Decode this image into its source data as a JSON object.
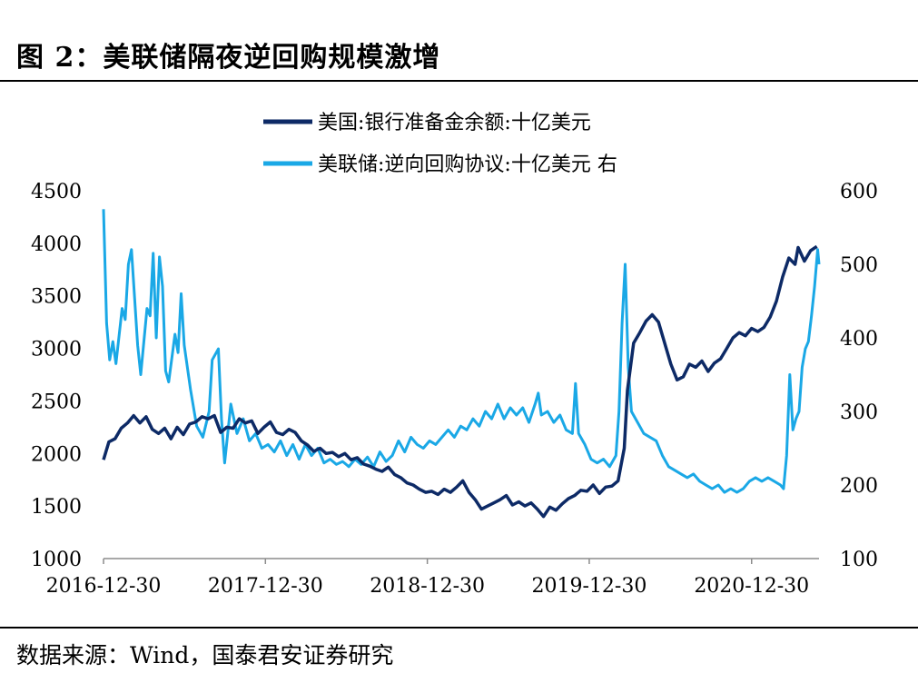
{
  "figure": {
    "title": "图 2：美联储隔夜逆回购规模激增",
    "source": "数据来源：Wind，国泰君安证券研究"
  },
  "chart_data": {
    "type": "line",
    "x_ticks": [
      "2016-12-30",
      "2017-12-30",
      "2018-12-30",
      "2019-12-30",
      "2020-12-30"
    ],
    "x_range": [
      "2016-12-30",
      "2021-05-31"
    ],
    "y_left": {
      "ticks": [
        1000,
        1500,
        2000,
        2500,
        3000,
        3500,
        4000,
        4500
      ],
      "range": [
        1000,
        4500
      ]
    },
    "y_right": {
      "ticks": [
        100,
        200,
        300,
        400,
        500,
        600
      ],
      "range": [
        100,
        600
      ]
    },
    "legend_position": "top-center",
    "grid": false,
    "series": [
      {
        "name": "美国:银行准备金余额:十亿美元",
        "axis": "left",
        "color": "#0d2a66",
        "points": [
          [
            "2016-12-30",
            1940
          ],
          [
            "2017-01-11",
            2110
          ],
          [
            "2017-01-25",
            2140
          ],
          [
            "2017-02-08",
            2240
          ],
          [
            "2017-02-22",
            2290
          ],
          [
            "2017-03-08",
            2360
          ],
          [
            "2017-03-22",
            2290
          ],
          [
            "2017-04-05",
            2350
          ],
          [
            "2017-04-19",
            2230
          ],
          [
            "2017-05-03",
            2190
          ],
          [
            "2017-05-17",
            2240
          ],
          [
            "2017-05-31",
            2140
          ],
          [
            "2017-06-14",
            2250
          ],
          [
            "2017-06-28",
            2180
          ],
          [
            "2017-07-12",
            2280
          ],
          [
            "2017-07-26",
            2300
          ],
          [
            "2017-08-09",
            2350
          ],
          [
            "2017-08-23",
            2330
          ],
          [
            "2017-09-06",
            2360
          ],
          [
            "2017-09-20",
            2200
          ],
          [
            "2017-10-04",
            2250
          ],
          [
            "2017-10-18",
            2240
          ],
          [
            "2017-11-01",
            2330
          ],
          [
            "2017-11-15",
            2290
          ],
          [
            "2017-11-29",
            2310
          ],
          [
            "2017-12-13",
            2190
          ],
          [
            "2017-12-27",
            2250
          ],
          [
            "2018-01-10",
            2300
          ],
          [
            "2018-01-24",
            2200
          ],
          [
            "2018-02-07",
            2180
          ],
          [
            "2018-02-21",
            2230
          ],
          [
            "2018-03-07",
            2200
          ],
          [
            "2018-03-21",
            2120
          ],
          [
            "2018-04-04",
            2080
          ],
          [
            "2018-04-18",
            2020
          ],
          [
            "2018-05-02",
            2050
          ],
          [
            "2018-05-16",
            2000
          ],
          [
            "2018-05-30",
            2010
          ],
          [
            "2018-06-13",
            1970
          ],
          [
            "2018-06-27",
            2000
          ],
          [
            "2018-07-11",
            1940
          ],
          [
            "2018-07-25",
            1960
          ],
          [
            "2018-08-08",
            1900
          ],
          [
            "2018-08-22",
            1880
          ],
          [
            "2018-09-05",
            1850
          ],
          [
            "2018-09-19",
            1830
          ],
          [
            "2018-10-03",
            1870
          ],
          [
            "2018-10-17",
            1800
          ],
          [
            "2018-10-31",
            1770
          ],
          [
            "2018-11-14",
            1720
          ],
          [
            "2018-11-28",
            1700
          ],
          [
            "2018-12-12",
            1660
          ],
          [
            "2018-12-26",
            1630
          ],
          [
            "2019-01-09",
            1640
          ],
          [
            "2019-01-23",
            1610
          ],
          [
            "2019-02-06",
            1660
          ],
          [
            "2019-02-20",
            1630
          ],
          [
            "2019-03-06",
            1680
          ],
          [
            "2019-03-20",
            1740
          ],
          [
            "2019-04-03",
            1630
          ],
          [
            "2019-04-17",
            1560
          ],
          [
            "2019-05-01",
            1470
          ],
          [
            "2019-05-15",
            1500
          ],
          [
            "2019-05-29",
            1530
          ],
          [
            "2019-06-12",
            1560
          ],
          [
            "2019-06-26",
            1600
          ],
          [
            "2019-07-10",
            1510
          ],
          [
            "2019-07-24",
            1540
          ],
          [
            "2019-08-07",
            1500
          ],
          [
            "2019-08-21",
            1530
          ],
          [
            "2019-09-04",
            1470
          ],
          [
            "2019-09-18",
            1400
          ],
          [
            "2019-10-02",
            1490
          ],
          [
            "2019-10-16",
            1460
          ],
          [
            "2019-10-30",
            1520
          ],
          [
            "2019-11-13",
            1570
          ],
          [
            "2019-11-27",
            1600
          ],
          [
            "2019-12-11",
            1650
          ],
          [
            "2019-12-25",
            1640
          ],
          [
            "2020-01-08",
            1700
          ],
          [
            "2020-01-22",
            1620
          ],
          [
            "2020-02-05",
            1680
          ],
          [
            "2020-02-19",
            1690
          ],
          [
            "2020-03-04",
            1740
          ],
          [
            "2020-03-18",
            2050
          ],
          [
            "2020-03-25",
            2600
          ],
          [
            "2020-04-08",
            3050
          ],
          [
            "2020-04-22",
            3150
          ],
          [
            "2020-05-06",
            3260
          ],
          [
            "2020-05-20",
            3320
          ],
          [
            "2020-06-03",
            3250
          ],
          [
            "2020-06-17",
            3050
          ],
          [
            "2020-07-01",
            2850
          ],
          [
            "2020-07-15",
            2700
          ],
          [
            "2020-07-29",
            2730
          ],
          [
            "2020-08-12",
            2850
          ],
          [
            "2020-08-26",
            2820
          ],
          [
            "2020-09-09",
            2880
          ],
          [
            "2020-09-23",
            2780
          ],
          [
            "2020-10-07",
            2860
          ],
          [
            "2020-10-21",
            2900
          ],
          [
            "2020-11-04",
            3000
          ],
          [
            "2020-11-18",
            3100
          ],
          [
            "2020-12-02",
            3150
          ],
          [
            "2020-12-16",
            3120
          ],
          [
            "2020-12-30",
            3190
          ],
          [
            "2021-01-13",
            3160
          ],
          [
            "2021-01-27",
            3200
          ],
          [
            "2021-02-10",
            3300
          ],
          [
            "2021-02-24",
            3450
          ],
          [
            "2021-03-10",
            3680
          ],
          [
            "2021-03-24",
            3860
          ],
          [
            "2021-04-07",
            3800
          ],
          [
            "2021-04-14",
            3960
          ],
          [
            "2021-04-28",
            3830
          ],
          [
            "2021-05-12",
            3930
          ],
          [
            "2021-05-26",
            3970
          ]
        ]
      },
      {
        "name": "美联储:逆向回购协议:十亿美元 右",
        "axis": "right",
        "color": "#1aa8e6",
        "points": [
          [
            "2016-12-30",
            575
          ],
          [
            "2017-01-06",
            420
          ],
          [
            "2017-01-13",
            370
          ],
          [
            "2017-01-20",
            395
          ],
          [
            "2017-01-27",
            365
          ],
          [
            "2017-02-10",
            440
          ],
          [
            "2017-02-17",
            425
          ],
          [
            "2017-02-24",
            500
          ],
          [
            "2017-03-03",
            520
          ],
          [
            "2017-03-17",
            390
          ],
          [
            "2017-03-24",
            350
          ],
          [
            "2017-04-07",
            440
          ],
          [
            "2017-04-14",
            430
          ],
          [
            "2017-04-21",
            515
          ],
          [
            "2017-04-28",
            400
          ],
          [
            "2017-05-05",
            510
          ],
          [
            "2017-05-12",
            470
          ],
          [
            "2017-05-19",
            355
          ],
          [
            "2017-05-26",
            340
          ],
          [
            "2017-06-09",
            405
          ],
          [
            "2017-06-16",
            380
          ],
          [
            "2017-06-23",
            460
          ],
          [
            "2017-06-30",
            390
          ],
          [
            "2017-07-14",
            330
          ],
          [
            "2017-07-28",
            280
          ],
          [
            "2017-08-11",
            265
          ],
          [
            "2017-08-25",
            300
          ],
          [
            "2017-09-01",
            370
          ],
          [
            "2017-09-15",
            385
          ],
          [
            "2017-09-22",
            290
          ],
          [
            "2017-09-29",
            230
          ],
          [
            "2017-10-13",
            310
          ],
          [
            "2017-10-27",
            270
          ],
          [
            "2017-11-10",
            290
          ],
          [
            "2017-11-24",
            260
          ],
          [
            "2017-12-08",
            270
          ],
          [
            "2017-12-22",
            250
          ],
          [
            "2018-01-05",
            255
          ],
          [
            "2018-01-19",
            245
          ],
          [
            "2018-02-02",
            260
          ],
          [
            "2018-02-16",
            240
          ],
          [
            "2018-03-02",
            255
          ],
          [
            "2018-03-16",
            235
          ],
          [
            "2018-03-30",
            255
          ],
          [
            "2018-04-13",
            240
          ],
          [
            "2018-04-27",
            250
          ],
          [
            "2018-05-11",
            230
          ],
          [
            "2018-05-25",
            235
          ],
          [
            "2018-06-08",
            228
          ],
          [
            "2018-06-22",
            232
          ],
          [
            "2018-07-06",
            225
          ],
          [
            "2018-07-20",
            235
          ],
          [
            "2018-08-03",
            228
          ],
          [
            "2018-08-17",
            238
          ],
          [
            "2018-08-31",
            225
          ],
          [
            "2018-09-14",
            245
          ],
          [
            "2018-09-28",
            232
          ],
          [
            "2018-10-12",
            240
          ],
          [
            "2018-10-26",
            260
          ],
          [
            "2018-11-09",
            245
          ],
          [
            "2018-11-23",
            265
          ],
          [
            "2018-12-07",
            255
          ],
          [
            "2018-12-21",
            250
          ],
          [
            "2019-01-04",
            260
          ],
          [
            "2019-01-18",
            255
          ],
          [
            "2019-02-01",
            265
          ],
          [
            "2019-02-15",
            275
          ],
          [
            "2019-03-01",
            265
          ],
          [
            "2019-03-15",
            280
          ],
          [
            "2019-03-29",
            275
          ],
          [
            "2019-04-12",
            290
          ],
          [
            "2019-04-26",
            280
          ],
          [
            "2019-05-10",
            300
          ],
          [
            "2019-05-24",
            290
          ],
          [
            "2019-06-07",
            310
          ],
          [
            "2019-06-21",
            290
          ],
          [
            "2019-07-05",
            305
          ],
          [
            "2019-07-19",
            295
          ],
          [
            "2019-08-02",
            305
          ],
          [
            "2019-08-16",
            285
          ],
          [
            "2019-08-30",
            310
          ],
          [
            "2019-09-06",
            325
          ],
          [
            "2019-09-13",
            295
          ],
          [
            "2019-09-27",
            300
          ],
          [
            "2019-10-11",
            285
          ],
          [
            "2019-10-25",
            295
          ],
          [
            "2019-11-08",
            275
          ],
          [
            "2019-11-22",
            270
          ],
          [
            "2019-11-29",
            338
          ],
          [
            "2019-12-06",
            270
          ],
          [
            "2019-12-20",
            255
          ],
          [
            "2020-01-03",
            235
          ],
          [
            "2020-01-17",
            230
          ],
          [
            "2020-01-31",
            235
          ],
          [
            "2020-02-14",
            225
          ],
          [
            "2020-02-28",
            240
          ],
          [
            "2020-03-06",
            300
          ],
          [
            "2020-03-13",
            420
          ],
          [
            "2020-03-20",
            500
          ],
          [
            "2020-03-27",
            360
          ],
          [
            "2020-04-03",
            300
          ],
          [
            "2020-04-17",
            285
          ],
          [
            "2020-05-01",
            270
          ],
          [
            "2020-05-15",
            265
          ],
          [
            "2020-05-29",
            260
          ],
          [
            "2020-06-12",
            240
          ],
          [
            "2020-06-26",
            225
          ],
          [
            "2020-07-10",
            220
          ],
          [
            "2020-07-24",
            215
          ],
          [
            "2020-08-07",
            210
          ],
          [
            "2020-08-21",
            215
          ],
          [
            "2020-09-04",
            205
          ],
          [
            "2020-09-18",
            200
          ],
          [
            "2020-10-02",
            195
          ],
          [
            "2020-10-16",
            200
          ],
          [
            "2020-10-30",
            190
          ],
          [
            "2020-11-13",
            195
          ],
          [
            "2020-11-27",
            190
          ],
          [
            "2020-12-11",
            195
          ],
          [
            "2020-12-25",
            205
          ],
          [
            "2021-01-08",
            210
          ],
          [
            "2021-01-22",
            205
          ],
          [
            "2021-02-05",
            210
          ],
          [
            "2021-02-19",
            205
          ],
          [
            "2021-03-05",
            200
          ],
          [
            "2021-03-12",
            195
          ],
          [
            "2021-03-19",
            240
          ],
          [
            "2021-03-26",
            350
          ],
          [
            "2021-04-02",
            275
          ],
          [
            "2021-04-09",
            290
          ],
          [
            "2021-04-16",
            300
          ],
          [
            "2021-04-23",
            360
          ],
          [
            "2021-04-30",
            385
          ],
          [
            "2021-05-07",
            395
          ],
          [
            "2021-05-14",
            430
          ],
          [
            "2021-05-21",
            470
          ],
          [
            "2021-05-28",
            520
          ],
          [
            "2021-05-31",
            500
          ]
        ]
      }
    ]
  }
}
